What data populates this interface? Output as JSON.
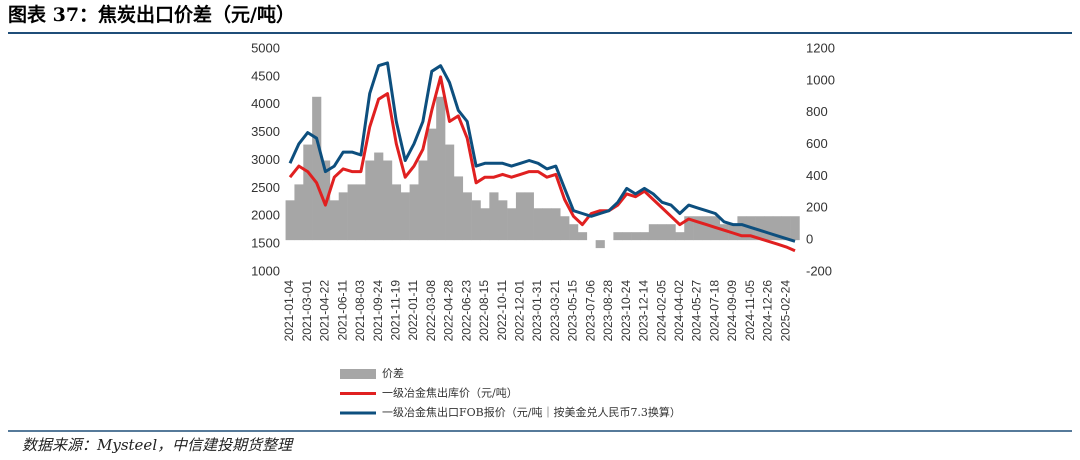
{
  "chart_data": {
    "type": "line",
    "title": "图表 37：焦炭出口价差（元/吨）",
    "source": "数据来源：Mysteel，中信建投期货整理",
    "categories": [
      "2021-01-04",
      null,
      "2021-03-01",
      null,
      "2021-04-22",
      null,
      "2021-06-11",
      null,
      "2021-08-03",
      null,
      "2021-09-24",
      null,
      "2021-11-19",
      null,
      "2022-01-11",
      null,
      "2022-03-08",
      null,
      "2022-04-28",
      null,
      "2022-06-23",
      null,
      "2022-08-15",
      null,
      "2022-10-11",
      null,
      "2022-12-01",
      null,
      "2023-01-31",
      null,
      "2023-03-21",
      null,
      "2023-05-15",
      null,
      "2023-07-06",
      null,
      "2023-08-28",
      null,
      "2023-10-24",
      null,
      "2023-12-14",
      null,
      "2024-02-05",
      null,
      "2024-04-02",
      null,
      "2024-05-27",
      null,
      "2024-07-18",
      null,
      "2024-09-09",
      null,
      "2024-11-05",
      null,
      "2024-12-26",
      null,
      "2025-02-24",
      null
    ],
    "series": [
      {
        "name": "价差",
        "color": "#a6a6a6",
        "type": "bar",
        "axis": "y2",
        "values": [
          250,
          350,
          600,
          900,
          500,
          250,
          300,
          350,
          350,
          500,
          550,
          500,
          350,
          300,
          350,
          500,
          700,
          900,
          600,
          400,
          300,
          250,
          200,
          300,
          250,
          200,
          300,
          300,
          200,
          200,
          200,
          150,
          100,
          50,
          0,
          -50,
          0,
          50,
          50,
          50,
          50,
          100,
          100,
          100,
          50,
          150,
          150,
          150,
          150,
          100,
          100,
          150,
          150,
          150,
          150,
          150,
          150,
          150
        ]
      },
      {
        "name": "一级冶金焦出库价（元/吨）",
        "color": "#e02020",
        "type": "line",
        "values": [
          2700,
          2900,
          2800,
          2600,
          2200,
          2700,
          2850,
          2800,
          2800,
          3600,
          4100,
          4200,
          3300,
          2700,
          2900,
          3200,
          3900,
          4500,
          3700,
          3800,
          3400,
          2600,
          2700,
          2700,
          2750,
          2700,
          2750,
          2800,
          2800,
          2700,
          2750,
          2300,
          2000,
          1850,
          2050,
          2100,
          2100,
          2200,
          2400,
          2350,
          2450,
          2300,
          2150,
          2000,
          1850,
          1950,
          1900,
          1850,
          1800,
          1750,
          1700,
          1650,
          1650,
          1600,
          1550,
          1500,
          1450,
          1380
        ]
      },
      {
        "name": "一级冶金焦出口FOB报价（元/吨｜按美金兑人民币7.3换算）",
        "color": "#0d4f7e",
        "type": "line",
        "values": [
          2950,
          3300,
          3500,
          3400,
          2800,
          2900,
          3150,
          3150,
          3100,
          4200,
          4700,
          4750,
          3700,
          3000,
          3300,
          3700,
          4600,
          4700,
          4400,
          3900,
          3700,
          2900,
          2950,
          2950,
          2950,
          2900,
          2950,
          3000,
          2950,
          2850,
          2900,
          2500,
          2100,
          2050,
          2000,
          2050,
          2100,
          2250,
          2500,
          2400,
          2500,
          2400,
          2250,
          2200,
          2050,
          2200,
          2150,
          2100,
          2050,
          1900,
          1850,
          1850,
          1800,
          1750,
          1700,
          1650,
          1600,
          1550
        ]
      }
    ],
    "ylim": [
      1000,
      5000
    ],
    "yticks": [
      1000,
      1500,
      2000,
      2500,
      3000,
      3500,
      4000,
      4500,
      5000
    ],
    "y2lim": [
      -200,
      1200
    ],
    "y2ticks": [
      -200,
      0,
      200,
      400,
      600,
      800,
      1000,
      1200
    ]
  }
}
